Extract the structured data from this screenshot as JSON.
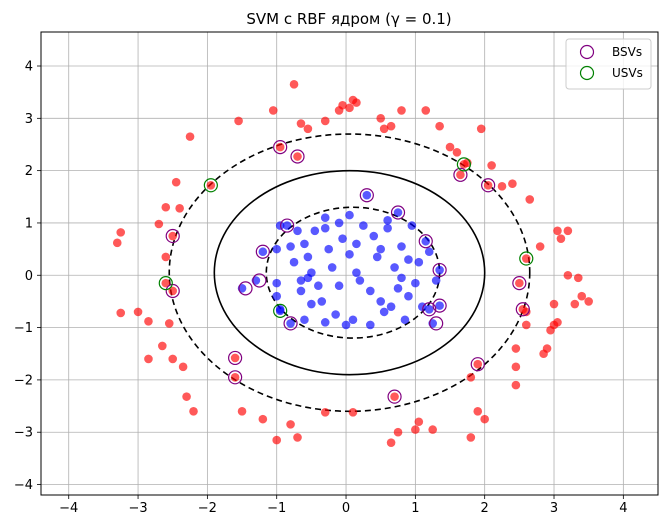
{
  "chart_data": {
    "type": "scatter",
    "title": "SVM с RBF ядром (γ = 0.1)",
    "xlabel": "",
    "ylabel": "",
    "xlim": [
      -4.4,
      4.5
    ],
    "ylim": [
      -4.2,
      4.65
    ],
    "xticks": [
      -4,
      -3,
      -2,
      -1,
      0,
      1,
      2,
      3,
      4
    ],
    "yticks": [
      -4,
      -3,
      -2,
      -1,
      0,
      1,
      2,
      3,
      4
    ],
    "xtick_labels": [
      "−4",
      "−3",
      "−2",
      "−1",
      "0",
      "1",
      "2",
      "3",
      "4"
    ],
    "ytick_labels": [
      "−4",
      "−3",
      "−2",
      "−1",
      "0",
      "1",
      "2",
      "3",
      "4"
    ],
    "grid": true,
    "legend_position": "top-right",
    "colors": {
      "outer_class": "#ff0000",
      "inner_class": "#0000ff",
      "bsv_edge": "#800080",
      "usv_edge": "#008000",
      "boundary": "#000000",
      "grid": "#b0b0b0"
    },
    "legend": [
      {
        "label": "BSVs",
        "edge": "#800080"
      },
      {
        "label": "USVs",
        "edge": "#008000"
      }
    ],
    "contours": [
      {
        "level": "margin-outer",
        "style": "dashed",
        "center": [
          0.05,
          0.05
        ],
        "radius_x": 2.6,
        "radius_y": 2.65
      },
      {
        "level": "decision",
        "style": "solid",
        "center": [
          0.05,
          0.05
        ],
        "radius_x": 1.95,
        "radius_y": 1.95
      },
      {
        "level": "margin-inner",
        "style": "dashed",
        "center": [
          0.1,
          0.05
        ],
        "radius_x": 1.25,
        "radius_y": 1.25
      }
    ],
    "series": [
      {
        "class": "outer",
        "color": "#ff0000",
        "points": [
          [
            -3.3,
            0.62
          ],
          [
            -3.25,
            0.82
          ],
          [
            -3.25,
            -0.72
          ],
          [
            -3.0,
            -0.7
          ],
          [
            -2.85,
            -0.88
          ],
          [
            -2.85,
            -1.6
          ],
          [
            -2.7,
            0.98
          ],
          [
            -2.65,
            -1.35
          ],
          [
            -2.6,
            1.3
          ],
          [
            -2.55,
            -0.92
          ],
          [
            -2.6,
            0.35
          ],
          [
            -2.5,
            -1.6
          ],
          [
            -2.45,
            1.78
          ],
          [
            -2.4,
            1.28
          ],
          [
            -2.35,
            -1.75
          ],
          [
            -2.3,
            -2.32
          ],
          [
            -2.25,
            2.65
          ],
          [
            -2.2,
            -2.6
          ],
          [
            -1.95,
            1.72
          ],
          [
            -1.6,
            -1.58
          ],
          [
            -1.5,
            -2.6
          ],
          [
            -1.55,
            2.95
          ],
          [
            -1.2,
            -2.75
          ],
          [
            -1.05,
            3.15
          ],
          [
            -1.0,
            -3.15
          ],
          [
            -0.8,
            -2.85
          ],
          [
            -0.75,
            3.65
          ],
          [
            -0.65,
            2.9
          ],
          [
            -0.7,
            -3.1
          ],
          [
            -0.55,
            2.8
          ],
          [
            -0.3,
            -2.62
          ],
          [
            -0.3,
            2.95
          ],
          [
            -0.1,
            3.15
          ],
          [
            -0.05,
            3.25
          ],
          [
            0.05,
            3.2
          ],
          [
            0.1,
            3.35
          ],
          [
            0.15,
            3.3
          ],
          [
            0.1,
            -2.62
          ],
          [
            0.5,
            3.0
          ],
          [
            0.55,
            2.8
          ],
          [
            0.65,
            2.85
          ],
          [
            0.65,
            -3.2
          ],
          [
            0.75,
            -3.0
          ],
          [
            0.8,
            3.15
          ],
          [
            1.0,
            -2.95
          ],
          [
            1.05,
            -2.8
          ],
          [
            1.15,
            3.15
          ],
          [
            1.25,
            -2.95
          ],
          [
            1.35,
            2.85
          ],
          [
            1.5,
            2.45
          ],
          [
            1.6,
            2.35
          ],
          [
            1.75,
            2.15
          ],
          [
            1.8,
            -3.1
          ],
          [
            1.8,
            -1.95
          ],
          [
            1.9,
            -2.6
          ],
          [
            1.95,
            2.8
          ],
          [
            2.0,
            -2.75
          ],
          [
            2.1,
            2.1
          ],
          [
            2.25,
            1.7
          ],
          [
            2.4,
            1.75
          ],
          [
            2.45,
            -1.4
          ],
          [
            2.45,
            -1.75
          ],
          [
            2.45,
            -2.1
          ],
          [
            2.6,
            -0.7
          ],
          [
            2.6,
            -0.95
          ],
          [
            2.65,
            1.45
          ],
          [
            2.8,
            0.55
          ],
          [
            2.85,
            -1.5
          ],
          [
            2.9,
            -1.4
          ],
          [
            2.95,
            -1.05
          ],
          [
            3.0,
            -0.55
          ],
          [
            3.0,
            -0.95
          ],
          [
            3.05,
            0.85
          ],
          [
            3.1,
            0.7
          ],
          [
            3.05,
            -0.9
          ],
          [
            3.2,
            0.85
          ],
          [
            3.2,
            0.0
          ],
          [
            3.3,
            -0.55
          ],
          [
            3.35,
            -0.05
          ],
          [
            3.4,
            -0.4
          ],
          [
            3.5,
            -0.5
          ],
          [
            -2.5,
            -0.3
          ],
          [
            -2.5,
            0.75
          ],
          [
            -0.95,
            2.45
          ],
          [
            -0.7,
            2.27
          ],
          [
            1.65,
            1.92
          ],
          [
            2.05,
            1.72
          ],
          [
            2.5,
            -0.15
          ],
          [
            2.55,
            -0.65
          ],
          [
            1.9,
            -1.7
          ],
          [
            0.7,
            -2.32
          ],
          [
            -1.6,
            -1.95
          ],
          [
            2.6,
            0.32
          ],
          [
            1.7,
            2.12
          ],
          [
            -2.6,
            -0.15
          ]
        ]
      },
      {
        "class": "inner",
        "color": "#0000ff",
        "points": [
          [
            -1.5,
            -0.25
          ],
          [
            -1.3,
            -0.1
          ],
          [
            -1.2,
            0.45
          ],
          [
            -1.0,
            0.5
          ],
          [
            -1.0,
            -0.15
          ],
          [
            -1.0,
            -0.4
          ],
          [
            -0.95,
            -0.65
          ],
          [
            -0.85,
            0.95
          ],
          [
            -0.8,
            -0.92
          ],
          [
            -0.8,
            0.55
          ],
          [
            -0.75,
            0.25
          ],
          [
            -0.7,
            0.85
          ],
          [
            -0.65,
            -0.3
          ],
          [
            -0.6,
            0.6
          ],
          [
            -0.6,
            -0.85
          ],
          [
            -0.55,
            0.35
          ],
          [
            -0.5,
            0.05
          ],
          [
            -0.5,
            -0.55
          ],
          [
            -0.45,
            0.85
          ],
          [
            -0.4,
            -0.2
          ],
          [
            -0.3,
            0.9
          ],
          [
            -0.3,
            -0.9
          ],
          [
            -0.25,
            0.5
          ],
          [
            -0.2,
            0.15
          ],
          [
            -0.15,
            -0.75
          ],
          [
            -0.1,
            1.0
          ],
          [
            -0.05,
            0.7
          ],
          [
            0.0,
            -0.95
          ],
          [
            0.05,
            0.4
          ],
          [
            0.05,
            1.15
          ],
          [
            0.1,
            -0.85
          ],
          [
            0.15,
            0.6
          ],
          [
            0.2,
            -0.1
          ],
          [
            0.25,
            0.95
          ],
          [
            0.3,
            1.53
          ],
          [
            0.35,
            -0.95
          ],
          [
            0.4,
            0.75
          ],
          [
            0.45,
            0.35
          ],
          [
            0.5,
            -0.5
          ],
          [
            0.55,
            -0.7
          ],
          [
            0.6,
            0.9
          ],
          [
            0.65,
            -0.6
          ],
          [
            0.7,
            0.15
          ],
          [
            0.75,
            1.2
          ],
          [
            0.75,
            -0.25
          ],
          [
            0.8,
            0.55
          ],
          [
            0.85,
            -0.85
          ],
          [
            0.9,
            0.3
          ],
          [
            0.9,
            -0.4
          ],
          [
            0.95,
            0.95
          ],
          [
            1.0,
            -0.15
          ],
          [
            1.05,
            0.25
          ],
          [
            1.1,
            -0.6
          ],
          [
            1.15,
            0.65
          ],
          [
            1.2,
            -0.65
          ],
          [
            1.25,
            -0.92
          ],
          [
            1.3,
            -0.1
          ],
          [
            1.35,
            0.1
          ],
          [
            1.35,
            -0.58
          ],
          [
            -0.3,
            1.1
          ],
          [
            -0.35,
            -0.5
          ],
          [
            0.15,
            0.05
          ],
          [
            -0.1,
            -0.2
          ],
          [
            0.5,
            0.5
          ],
          [
            -0.65,
            -0.1
          ],
          [
            -0.95,
            0.95
          ],
          [
            -0.95,
            -0.68
          ],
          [
            1.2,
            0.45
          ],
          [
            0.35,
            -0.3
          ],
          [
            0.6,
            1.05
          ],
          [
            -0.55,
            -0.05
          ],
          [
            0.8,
            -0.05
          ]
        ]
      }
    ],
    "bsv_points": [
      [
        -2.5,
        0.75
      ],
      [
        -2.5,
        -0.3
      ],
      [
        -1.6,
        -1.58
      ],
      [
        -1.6,
        -1.95
      ],
      [
        -1.45,
        -0.25
      ],
      [
        -1.25,
        -0.1
      ],
      [
        -1.2,
        0.45
      ],
      [
        -0.95,
        2.45
      ],
      [
        -0.85,
        0.95
      ],
      [
        -0.8,
        -0.92
      ],
      [
        -0.7,
        2.27
      ],
      [
        0.3,
        1.53
      ],
      [
        0.7,
        -2.32
      ],
      [
        0.75,
        1.2
      ],
      [
        1.15,
        0.65
      ],
      [
        1.2,
        -0.65
      ],
      [
        1.3,
        -0.92
      ],
      [
        1.35,
        0.1
      ],
      [
        1.35,
        -0.58
      ],
      [
        1.65,
        1.92
      ],
      [
        1.9,
        -1.7
      ],
      [
        2.05,
        1.72
      ],
      [
        2.5,
        -0.15
      ],
      [
        2.55,
        -0.65
      ]
    ],
    "usv_points": [
      [
        -1.95,
        1.72
      ],
      [
        -2.6,
        -0.15
      ],
      [
        -0.95,
        -0.68
      ],
      [
        1.7,
        2.12
      ],
      [
        2.6,
        0.32
      ]
    ]
  }
}
